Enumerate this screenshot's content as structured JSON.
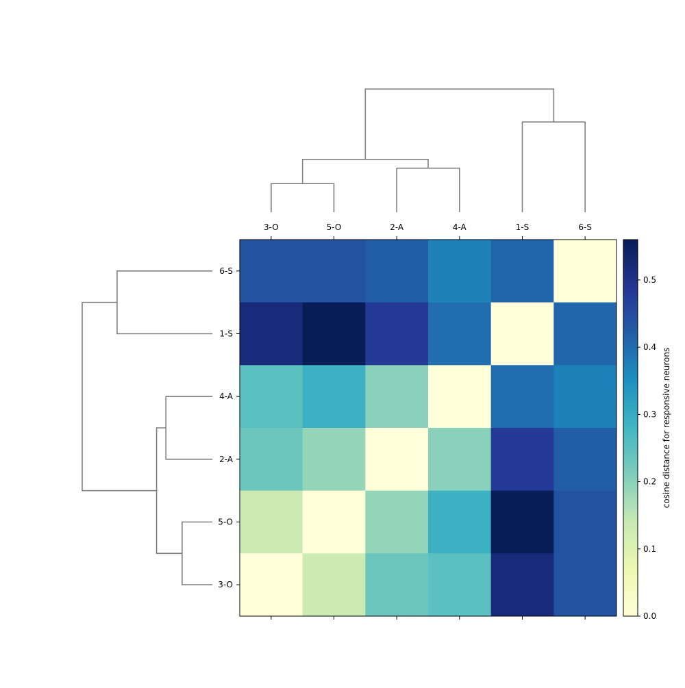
{
  "chart_data": {
    "type": "heatmap",
    "title": "",
    "x_labels": [
      "3-O",
      "5-O",
      "2-A",
      "4-A",
      "1-S",
      "6-S"
    ],
    "y_labels": [
      "6-S",
      "1-S",
      "4-A",
      "2-A",
      "5-O",
      "3-O"
    ],
    "values": [
      [
        0.44,
        0.44,
        0.42,
        0.37,
        0.41,
        0.0
      ],
      [
        0.52,
        0.56,
        0.48,
        0.4,
        0.0,
        0.41
      ],
      [
        0.25,
        0.29,
        0.2,
        0.0,
        0.4,
        0.37
      ],
      [
        0.23,
        0.19,
        0.0,
        0.2,
        0.48,
        0.42
      ],
      [
        0.13,
        0.0,
        0.19,
        0.29,
        0.56,
        0.44
      ],
      [
        0.0,
        0.13,
        0.23,
        0.25,
        0.52,
        0.44
      ]
    ],
    "colormap": "YlGnBu",
    "colorbar": {
      "label": "cosine distance for responsive neurons",
      "range": [
        0.0,
        0.56
      ],
      "ticks": [
        0.0,
        0.1,
        0.2,
        0.3,
        0.4,
        0.5
      ],
      "tick_labels": [
        "0.0",
        "0.1",
        "0.2",
        "0.3",
        "0.4",
        "0.5"
      ]
    },
    "dendrogram_color": "#808080",
    "col_dendrogram": [
      {
        "a": "3-O",
        "b": "5-O",
        "height": 0.13
      },
      {
        "a": "2-A",
        "b": "4-A",
        "height": 0.2
      },
      {
        "a": "1-S",
        "b": "6-S",
        "height": 0.41
      },
      {
        "a": "3-O|5-O",
        "b": "2-A|4-A",
        "height": 0.24
      },
      {
        "a": "3-O|5-O|2-A|4-A",
        "b": "1-S|6-S",
        "height": 0.56
      }
    ],
    "row_dendrogram": [
      {
        "a": "6-S",
        "b": "1-S",
        "height": 0.41
      },
      {
        "a": "4-A",
        "b": "2-A",
        "height": 0.2
      },
      {
        "a": "5-O",
        "b": "3-O",
        "height": 0.13
      },
      {
        "a": "4-A|2-A",
        "b": "5-O|3-O",
        "height": 0.24
      },
      {
        "a": "6-S|1-S",
        "b": "4-A|2-A|5-O|3-O",
        "height": 0.56
      }
    ]
  }
}
